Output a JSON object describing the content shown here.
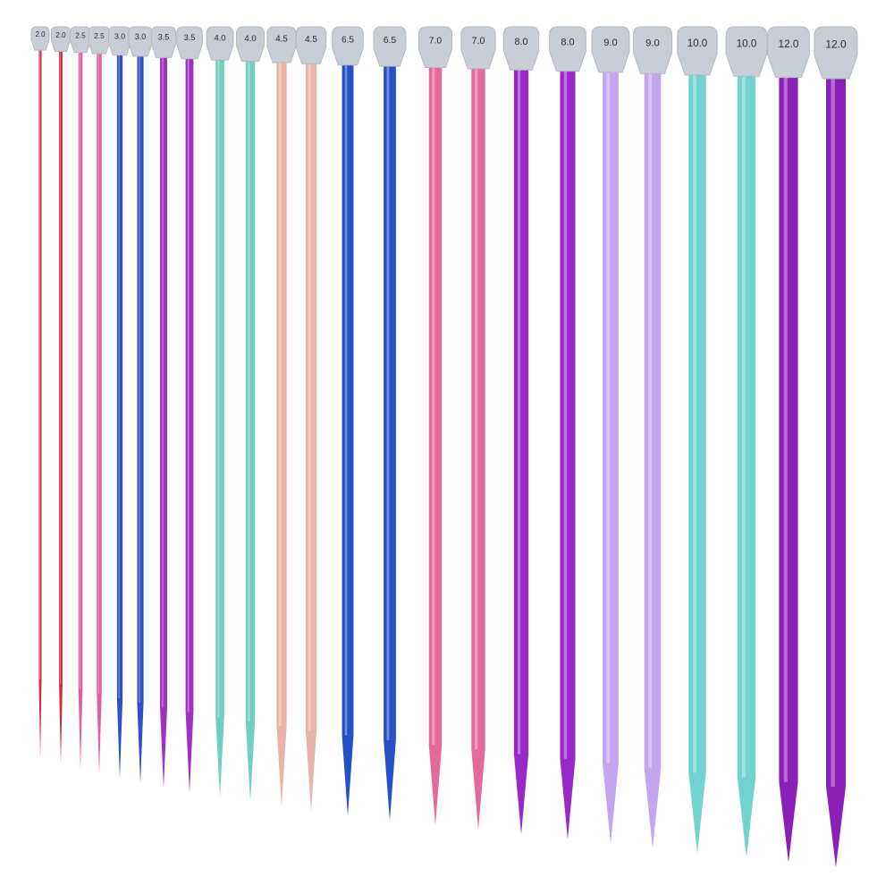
{
  "labels": [
    "2.0",
    "2.0",
    "2.5",
    "2.5",
    "3.0",
    "3.0",
    "3.5",
    "3.5",
    "4.0",
    "4.0",
    "4.5",
    "4.5",
    "6.5",
    "6.5",
    "7.0",
    "7.0",
    "8.0",
    "8.0",
    "9.0",
    "9.0",
    "10.0",
    "10.0",
    "12.0",
    "12.0"
  ]
}
